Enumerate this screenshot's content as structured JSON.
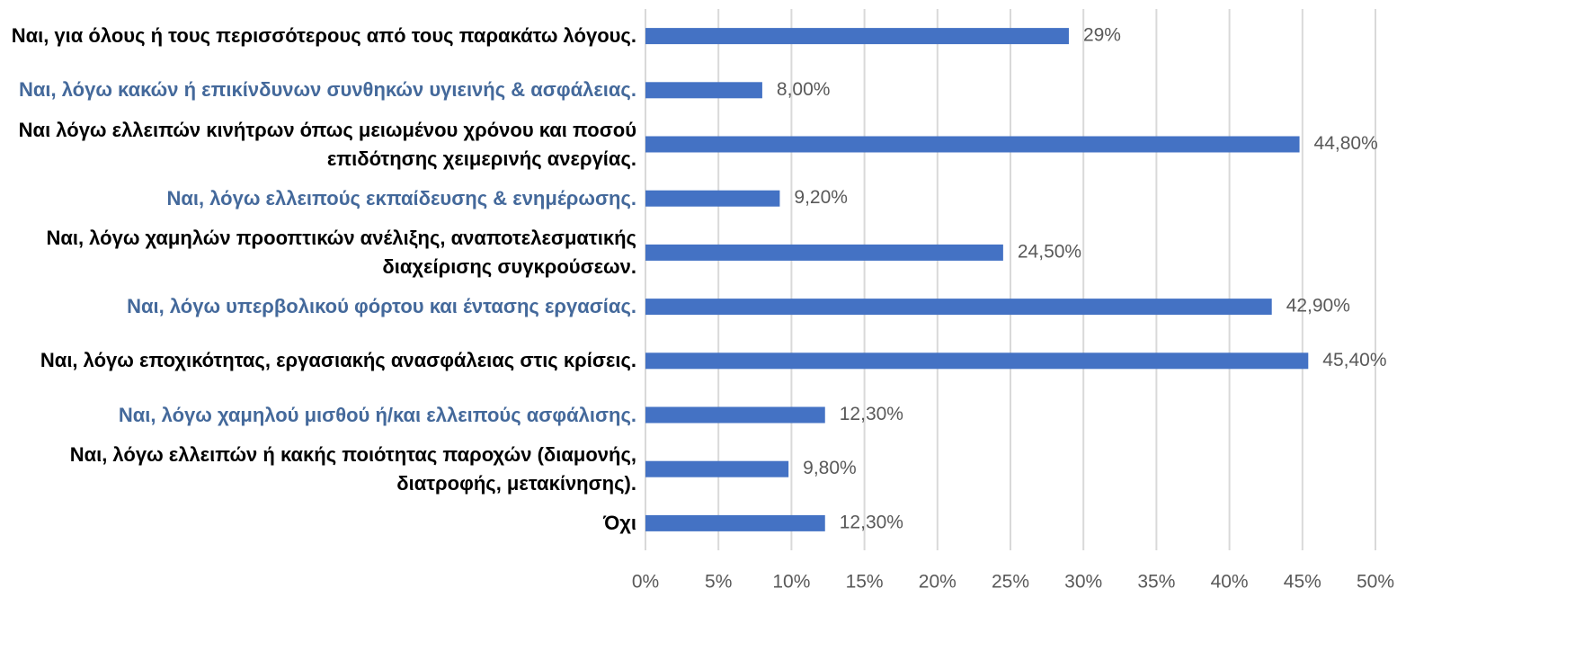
{
  "chart_data": {
    "type": "barh",
    "categories": [
      "Ναι, για όλους ή τους περισσότερους από τους παρακάτω λόγους.",
      "Ναι, λόγω κακών ή επικίνδυνων συνθηκών υγιεινής & ασφάλειας.",
      "Ναι λόγω ελλειπών κινήτρων όπως μειωμένου χρόνου και ποσού επιδότησης χειμερινής ανεργίας.",
      "Ναι, λόγω ελλειπούς εκπαίδευσης & ενημέρωσης.",
      "Ναι, λόγω χαμηλών προοπτικών ανέλιξης, αναποτελεσματικής διαχείρισης συγκρούσεων.",
      "Ναι, λόγω υπερβολικού φόρτου και έντασης εργασίας.",
      "Ναι, λόγω εποχικότητας, εργασιακής ανασφάλειας στις κρίσεις.",
      "Ναι, λόγω χαμηλού μισθού ή/και ελλειπούς ασφάλισης.",
      "Ναι, λόγω ελλειπών ή κακής ποιότητας παροχών (διαμονής, διατροφής, μετακίνησης).",
      "Όχι"
    ],
    "category_colors": [
      "#000000",
      "#44699b",
      "#000000",
      "#44699b",
      "#000000",
      "#44699b",
      "#000000",
      "#44699b",
      "#000000",
      "#000000"
    ],
    "values": [
      29,
      8,
      44.8,
      9.2,
      24.5,
      42.9,
      45.4,
      12.3,
      9.8,
      12.3
    ],
    "value_labels": [
      "29%",
      "8,00%",
      "44,80%",
      "9,20%",
      "24,50%",
      "42,90%",
      "45,40%",
      "12,30%",
      "9,80%",
      "12,30%"
    ],
    "color": "#4472c4",
    "xlim": [
      0,
      50
    ],
    "xticks": [
      {
        "value": 0,
        "label": "0%"
      },
      {
        "value": 5,
        "label": "5%"
      },
      {
        "value": 10,
        "label": "10%"
      },
      {
        "value": 15,
        "label": "15%"
      },
      {
        "value": 20,
        "label": "20%"
      },
      {
        "value": 25,
        "label": "25%"
      },
      {
        "value": 30,
        "label": "30%"
      },
      {
        "value": 35,
        "label": "35%"
      },
      {
        "value": 40,
        "label": "40%"
      },
      {
        "value": 45,
        "label": "45%"
      },
      {
        "value": 50,
        "label": "50%"
      }
    ],
    "grid": true
  }
}
